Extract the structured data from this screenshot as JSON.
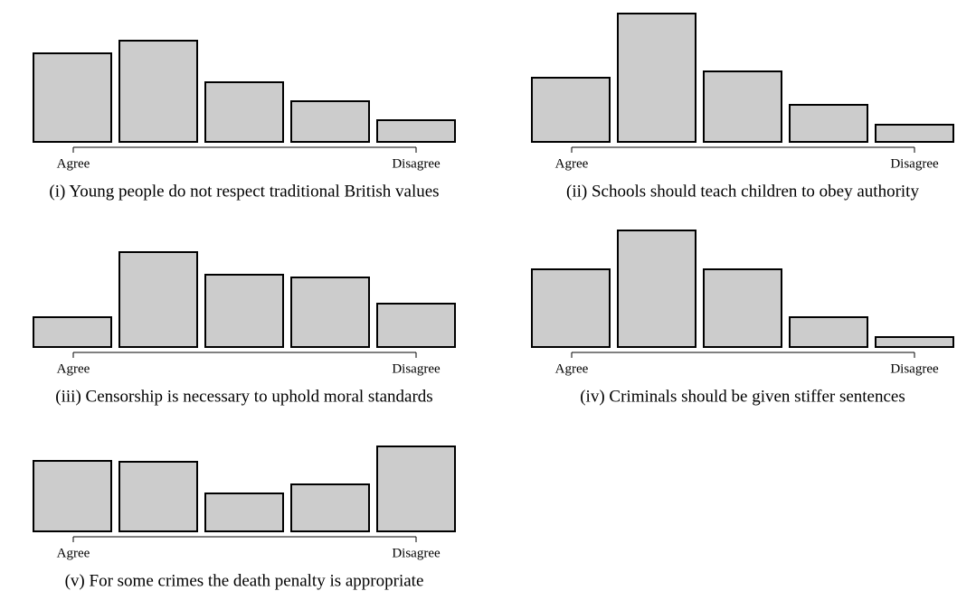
{
  "chart_data": [
    {
      "type": "bar",
      "title": "(i) Young people do not respect traditional British values",
      "categories": [
        null,
        null,
        null,
        null,
        null
      ],
      "values": [
        98,
        112,
        66,
        45,
        24
      ],
      "color": "#cccccc",
      "x_start_label": "Agree",
      "x_end_label": "Disagree"
    },
    {
      "type": "bar",
      "title": "(ii) Schools should teach children to obey authority",
      "categories": [
        null,
        null,
        null,
        null,
        null
      ],
      "values": [
        71,
        142,
        78,
        41,
        19
      ],
      "color": "#cccccc",
      "x_start_label": "Agree",
      "x_end_label": "Disagree"
    },
    {
      "type": "bar",
      "title": "(iii) Censorship is necessary to uphold moral standards",
      "categories": [
        null,
        null,
        null,
        null,
        null
      ],
      "values": [
        33,
        105,
        80,
        77,
        48
      ],
      "color": "#cccccc",
      "x_start_label": "Agree",
      "x_end_label": "Disagree"
    },
    {
      "type": "bar",
      "title": "(iv) Criminals should be given stiffer sentences",
      "categories": [
        null,
        null,
        null,
        null,
        null
      ],
      "values": [
        86,
        129,
        86,
        33,
        11
      ],
      "color": "#cccccc",
      "x_start_label": "Agree",
      "x_end_label": "Disagree"
    },
    {
      "type": "bar",
      "title": "(v) For some crimes the death penalty is appropriate",
      "categories": [
        null,
        null,
        null,
        null,
        null
      ],
      "values": [
        78,
        77,
        42,
        52,
        94
      ],
      "color": "#cccccc",
      "x_start_label": "Agree",
      "x_end_label": "Disagree"
    }
  ]
}
